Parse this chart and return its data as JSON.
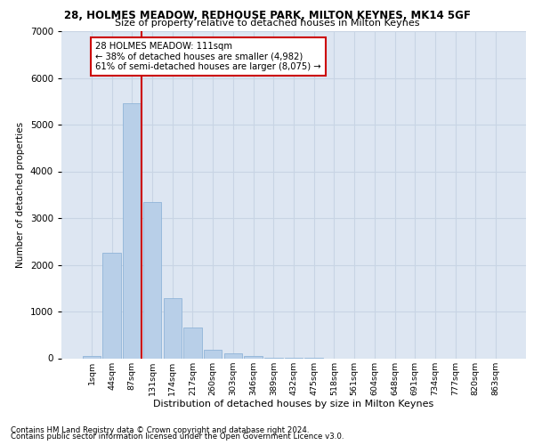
{
  "title1": "28, HOLMES MEADOW, REDHOUSE PARK, MILTON KEYNES, MK14 5GF",
  "title2": "Size of property relative to detached houses in Milton Keynes",
  "xlabel": "Distribution of detached houses by size in Milton Keynes",
  "ylabel": "Number of detached properties",
  "footnote1": "Contains HM Land Registry data © Crown copyright and database right 2024.",
  "footnote2": "Contains public sector information licensed under the Open Government Licence v3.0.",
  "bar_labels": [
    "1sqm",
    "44sqm",
    "87sqm",
    "131sqm",
    "174sqm",
    "217sqm",
    "260sqm",
    "303sqm",
    "346sqm",
    "389sqm",
    "432sqm",
    "475sqm",
    "518sqm",
    "561sqm",
    "604sqm",
    "648sqm",
    "691sqm",
    "734sqm",
    "777sqm",
    "820sqm",
    "863sqm"
  ],
  "bar_values": [
    50,
    2250,
    5450,
    3350,
    1280,
    650,
    175,
    100,
    50,
    10,
    2,
    1,
    0,
    0,
    0,
    0,
    0,
    0,
    0,
    0,
    0
  ],
  "bar_color": "#b8cfe8",
  "bar_edge_color": "#90b4d8",
  "grid_color": "#c8d4e4",
  "background_color": "#dde6f2",
  "annotation_text": "28 HOLMES MEADOW: 111sqm\n← 38% of detached houses are smaller (4,982)\n61% of semi-detached houses are larger (8,075) →",
  "annotation_box_color": "#ffffff",
  "annotation_box_edge": "#cc0000",
  "redline_bar_index": 2,
  "ylim": [
    0,
    7000
  ],
  "yticks": [
    0,
    1000,
    2000,
    3000,
    4000,
    5000,
    6000,
    7000
  ]
}
